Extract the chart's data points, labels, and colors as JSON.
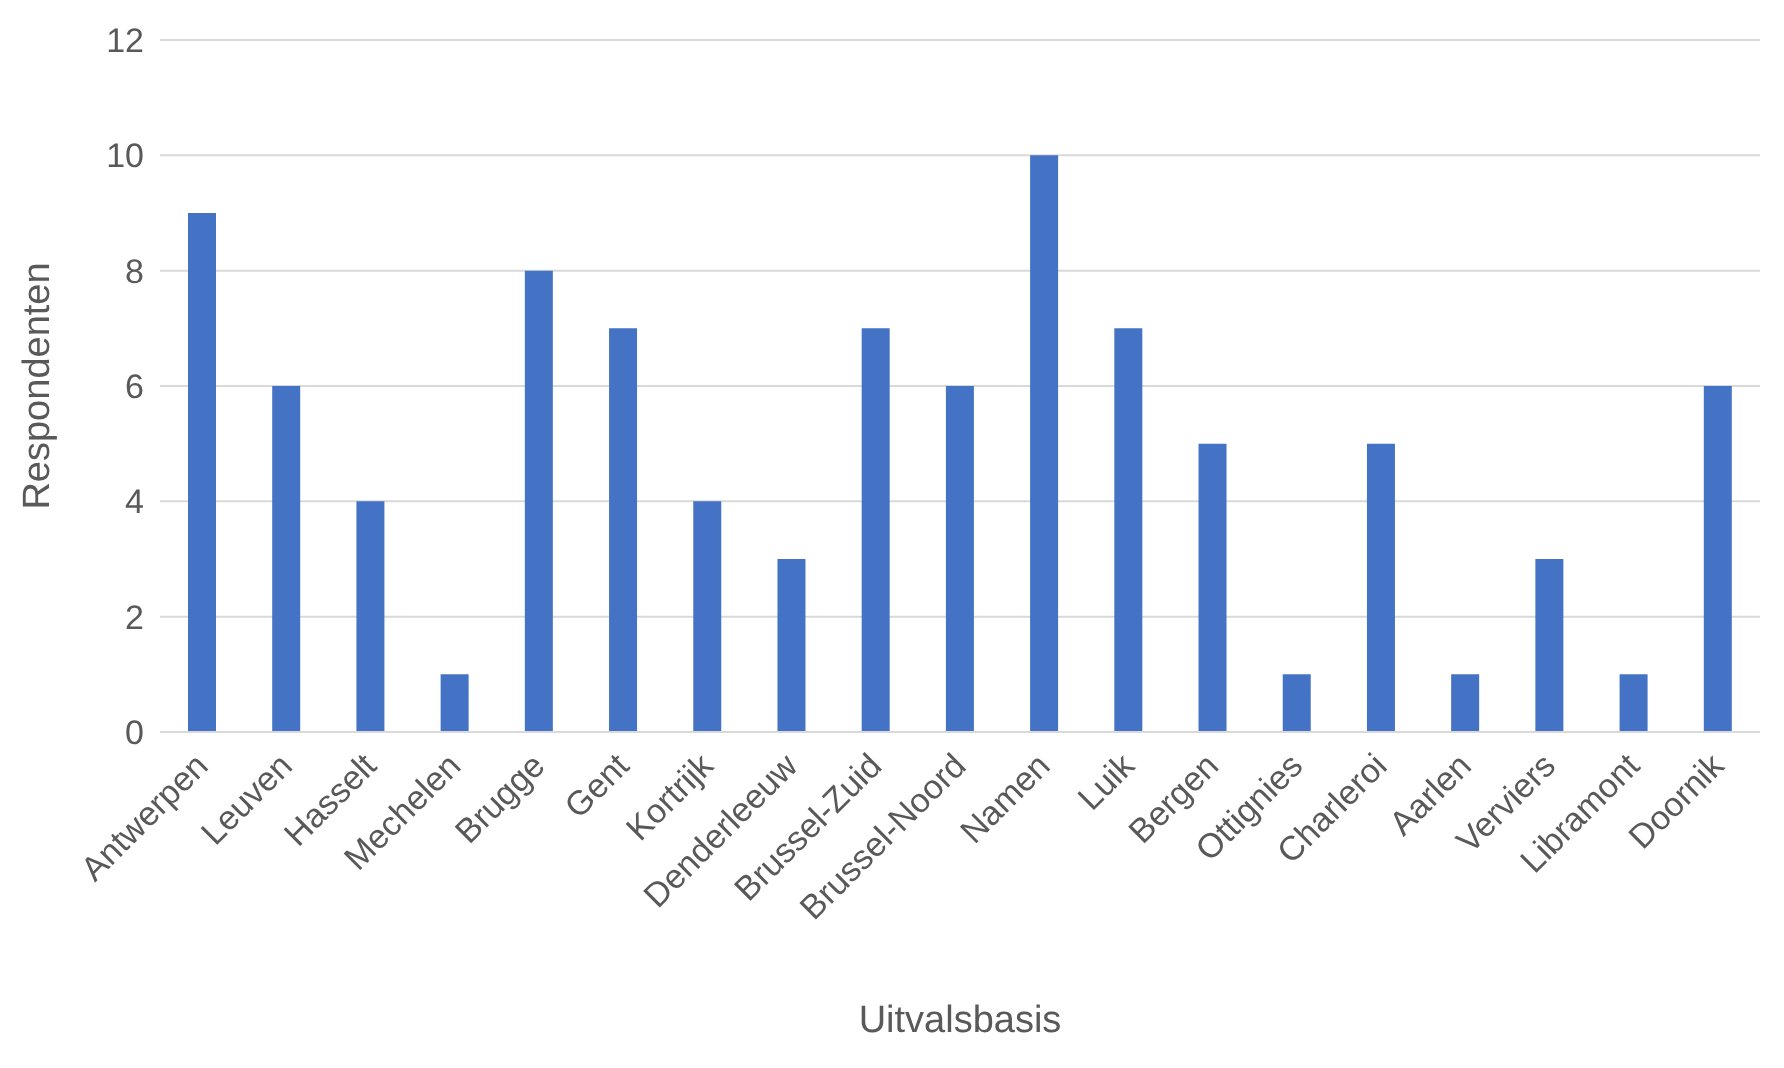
{
  "chart_data": {
    "type": "bar",
    "xlabel": "Uitvalsbasis",
    "ylabel": "Respondenten",
    "categories": [
      "Antwerpen",
      "Leuven",
      "Hasselt",
      "Mechelen",
      "Brugge",
      "Gent",
      "Kortrijk",
      "Denderleeuw",
      "Brussel-Zuid",
      "Brussel-Noord",
      "Namen",
      "Luik",
      "Bergen",
      "Ottignies",
      "Charleroi",
      "Aarlen",
      "Verviers",
      "Libramont",
      "Doornik"
    ],
    "values": [
      9,
      6,
      4,
      1,
      8,
      7,
      4,
      3,
      7,
      6,
      10,
      7,
      5,
      1,
      5,
      1,
      3,
      1,
      6
    ],
    "color": "#4472c4",
    "ylim": [
      0,
      12
    ],
    "yticks": [
      0,
      2,
      4,
      6,
      8,
      10,
      12
    ],
    "grid": "y"
  }
}
